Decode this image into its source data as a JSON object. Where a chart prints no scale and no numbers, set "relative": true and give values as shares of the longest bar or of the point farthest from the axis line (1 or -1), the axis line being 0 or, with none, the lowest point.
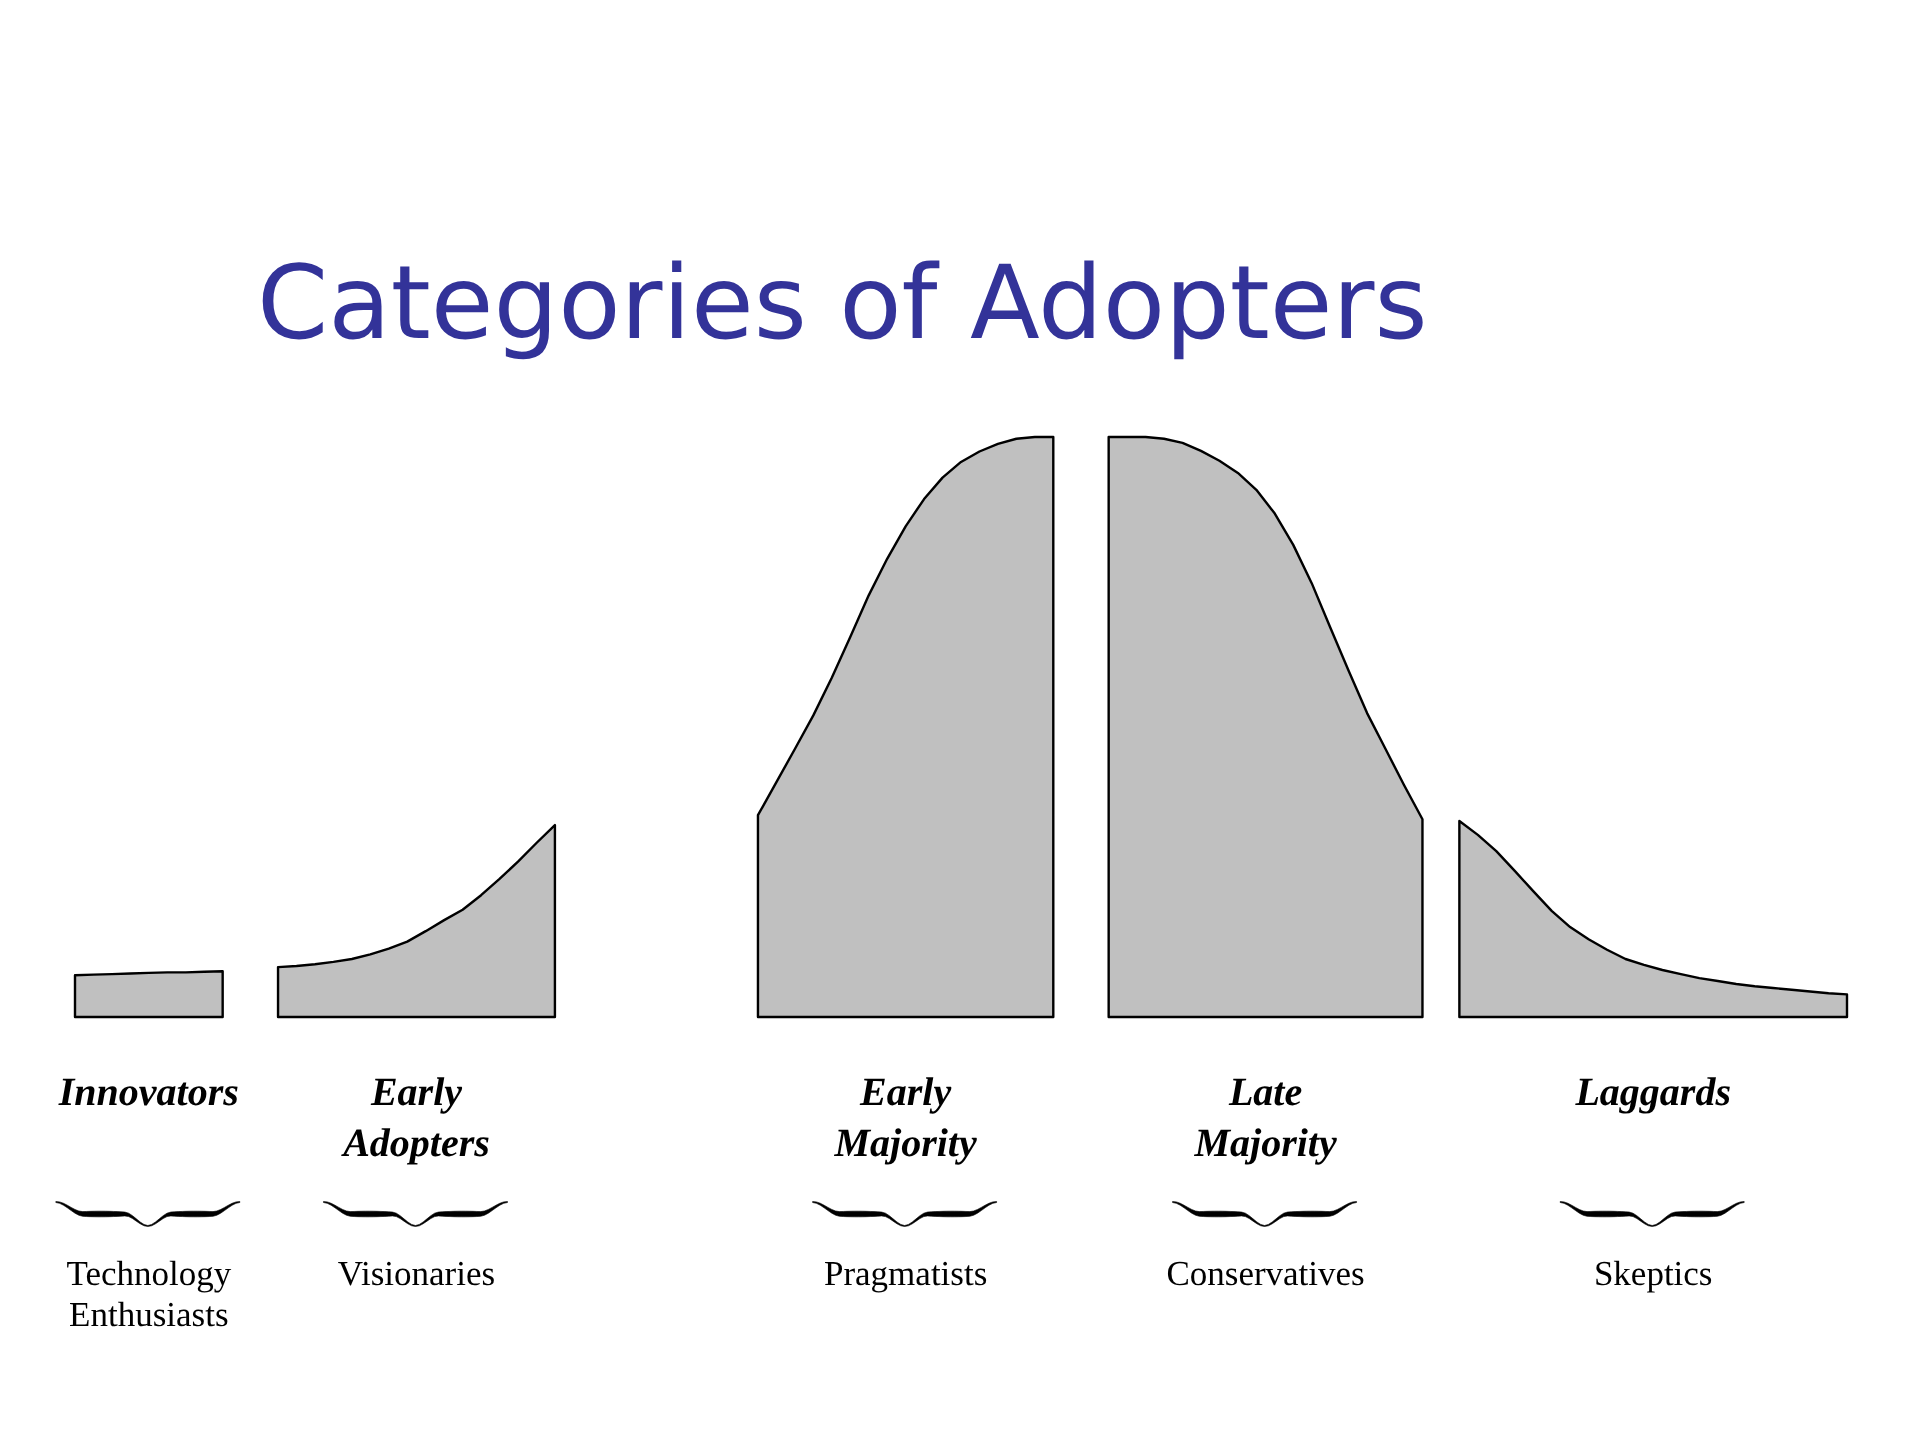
{
  "chart_data": {
    "type": "area",
    "title": "Categories of Adopters",
    "relative": true,
    "categories": [
      null,
      null,
      null,
      null,
      null,
      null,
      null,
      null,
      null,
      null,
      null,
      null,
      null,
      null,
      null,
      null,
      null,
      null,
      null,
      null,
      null,
      null,
      null,
      null,
      null,
      null,
      null,
      null,
      null,
      null,
      null,
      null,
      null,
      null,
      null,
      null,
      null,
      null,
      null,
      null,
      null,
      null,
      null,
      null,
      null,
      null,
      null,
      null,
      null,
      null,
      null,
      null,
      null,
      null,
      null,
      null,
      null,
      null,
      null,
      null,
      null,
      null,
      null,
      null,
      null,
      null,
      null,
      null,
      null,
      null,
      null,
      null,
      null,
      null,
      null,
      null,
      null,
      null,
      null,
      null,
      null,
      null,
      null,
      null,
      null,
      null,
      null,
      null,
      null,
      null,
      null,
      null,
      null,
      null,
      null,
      null,
      null
    ],
    "series": [
      {
        "name": "Innovators",
        "color": "#c0c0c0",
        "values": [
          0.072,
          0.073,
          0.074,
          0.075,
          0.076,
          0.077,
          0.077,
          0.078,
          0.079,
          null,
          null,
          null,
          null,
          null,
          null,
          null,
          null,
          null,
          null,
          null,
          null,
          null,
          null,
          null,
          null,
          null,
          null,
          null,
          null,
          null,
          null,
          null,
          null,
          null,
          null,
          null,
          null,
          null,
          null,
          null,
          null,
          null,
          null,
          null,
          null,
          null,
          null,
          null,
          null,
          null,
          null,
          null,
          null,
          null,
          null,
          null,
          null,
          null,
          null,
          null,
          null,
          null,
          null,
          null,
          null,
          null,
          null,
          null,
          null,
          null,
          null,
          null,
          null,
          null,
          null,
          null,
          null,
          null,
          null,
          null,
          null,
          null,
          null,
          null,
          null,
          null,
          null,
          null,
          null,
          null,
          null,
          null,
          null,
          null,
          null,
          null,
          null
        ]
      },
      {
        "name": "Early\nAdopters",
        "color": "#c0c0c0",
        "values": [
          null,
          null,
          null,
          null,
          null,
          null,
          null,
          null,
          null,
          null,
          null,
          0.086,
          0.088,
          0.091,
          0.095,
          0.1,
          0.108,
          0.118,
          0.13,
          0.148,
          0.167,
          0.185,
          0.21,
          0.238,
          0.268,
          0.3,
          0.331,
          null,
          null,
          null,
          null,
          null,
          null,
          null,
          null,
          null,
          null,
          null,
          null,
          null,
          null,
          null,
          null,
          null,
          null,
          null,
          null,
          null,
          null,
          null,
          null,
          null,
          null,
          null,
          null,
          null,
          null,
          null,
          null,
          null,
          null,
          null,
          null,
          null,
          null,
          null,
          null,
          null,
          null,
          null,
          null,
          null,
          null,
          null,
          null,
          null,
          null,
          null,
          null,
          null,
          null,
          null,
          null,
          null,
          null,
          null,
          null,
          null,
          null,
          null,
          null,
          null,
          null,
          null,
          null,
          null,
          null
        ]
      },
      {
        "name": "Early\nMajority",
        "color": "#c0c0c0",
        "values": [
          null,
          null,
          null,
          null,
          null,
          null,
          null,
          null,
          null,
          null,
          null,
          null,
          null,
          null,
          null,
          null,
          null,
          null,
          null,
          null,
          null,
          null,
          null,
          null,
          null,
          null,
          null,
          null,
          null,
          null,
          null,
          null,
          null,
          null,
          null,
          null,
          null,
          0.348,
          0.405,
          0.462,
          0.52,
          0.585,
          0.655,
          0.727,
          0.79,
          0.846,
          0.893,
          0.93,
          0.957,
          0.975,
          0.988,
          0.997,
          1.0,
          1.0,
          null,
          null,
          null,
          null,
          null,
          null,
          null,
          null,
          null,
          null,
          null,
          null,
          null,
          null,
          null,
          null,
          null,
          null,
          null,
          null,
          null,
          null,
          null,
          null,
          null,
          null,
          null,
          null,
          null,
          null,
          null,
          null,
          null,
          null,
          null,
          null,
          null,
          null,
          null,
          null,
          null,
          null,
          null
        ]
      },
      {
        "name": "Late\nMajority",
        "color": "#c0c0c0",
        "values": [
          null,
          null,
          null,
          null,
          null,
          null,
          null,
          null,
          null,
          null,
          null,
          null,
          null,
          null,
          null,
          null,
          null,
          null,
          null,
          null,
          null,
          null,
          null,
          null,
          null,
          null,
          null,
          null,
          null,
          null,
          null,
          null,
          null,
          null,
          null,
          null,
          null,
          null,
          null,
          null,
          null,
          null,
          null,
          null,
          null,
          null,
          null,
          null,
          null,
          null,
          null,
          null,
          null,
          null,
          null,
          null,
          1.0,
          1.0,
          1.0,
          0.997,
          0.99,
          0.976,
          0.959,
          0.938,
          0.909,
          0.868,
          0.814,
          0.748,
          0.672,
          0.597,
          0.524,
          0.462,
          0.4,
          0.341,
          null,
          null,
          null,
          null,
          null,
          null,
          null,
          null,
          null,
          null,
          null,
          null,
          null,
          null,
          null,
          null,
          null,
          null,
          null,
          null,
          null,
          null,
          null
        ]
      },
      {
        "name": "Laggards",
        "color": "#c0c0c0",
        "values": [
          null,
          null,
          null,
          null,
          null,
          null,
          null,
          null,
          null,
          null,
          null,
          null,
          null,
          null,
          null,
          null,
          null,
          null,
          null,
          null,
          null,
          null,
          null,
          null,
          null,
          null,
          null,
          null,
          null,
          null,
          null,
          null,
          null,
          null,
          null,
          null,
          null,
          null,
          null,
          null,
          null,
          null,
          null,
          null,
          null,
          null,
          null,
          null,
          null,
          null,
          null,
          null,
          null,
          null,
          null,
          null,
          null,
          null,
          null,
          null,
          null,
          null,
          null,
          null,
          null,
          null,
          null,
          null,
          null,
          null,
          null,
          null,
          null,
          null,
          null,
          0.338,
          0.314,
          0.286,
          0.252,
          0.217,
          0.183,
          0.155,
          0.134,
          0.116,
          0.1,
          0.09,
          0.081,
          0.074,
          0.067,
          0.062,
          0.057,
          0.053,
          0.05,
          0.047,
          0.044,
          0.041,
          0.039
        ]
      }
    ],
    "annotations": [
      "Technology\nEnthusiasts",
      "Visionaries",
      "Pragmatists",
      "Conservatives",
      "Skeptics"
    ]
  }
}
